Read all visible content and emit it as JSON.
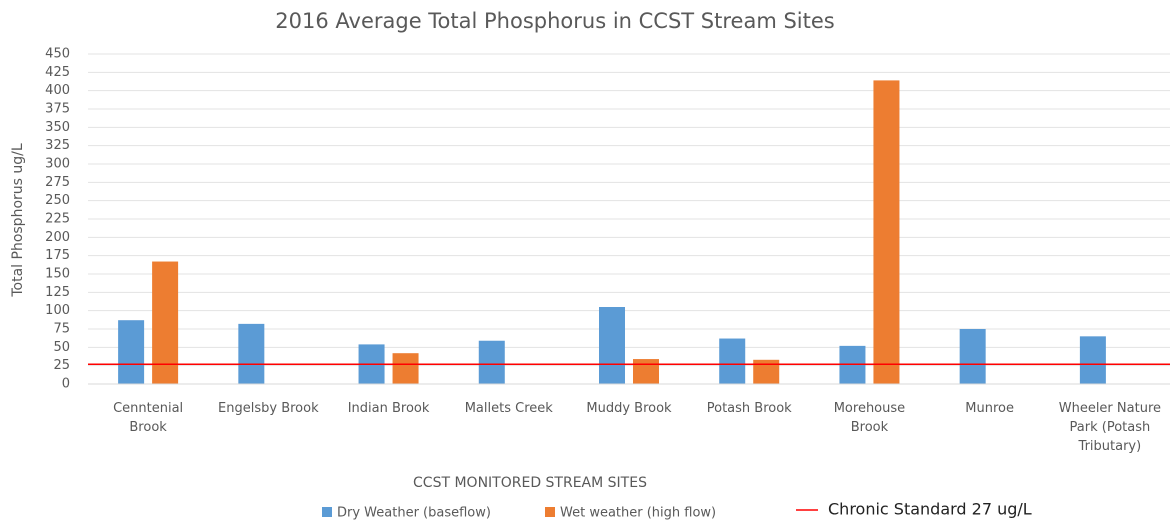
{
  "chart_data": {
    "type": "bar",
    "title": "2016 Average Total Phosphorus in CCST Stream Sites",
    "x_label": "CCST MONITORED STREAM SITES",
    "y_label": "Total Phosphorus ug/L",
    "categories": [
      "Cenntenial Brook",
      "Engelsby Brook",
      "Indian Brook",
      "Mallets Creek",
      "Muddy Brook",
      "Potash Brook",
      "Morehouse Brook",
      "Munroe",
      "Wheeler Nature Park (Potash Tributary)"
    ],
    "series": [
      {
        "name": "Dry Weather (baseflow)",
        "color": "#5b9bd5",
        "values": [
          87,
          82,
          54,
          59,
          105,
          62,
          52,
          75,
          65
        ]
      },
      {
        "name": "Wet weather (high flow)",
        "color": "#ed7d31",
        "values": [
          167,
          null,
          42,
          null,
          34,
          33,
          414,
          null,
          null
        ]
      }
    ],
    "reference_line": {
      "name": "Chronic Standard 27 ug/L",
      "value": 27,
      "color": "#ff0000"
    },
    "ylim": [
      0,
      450
    ],
    "yticks": [
      0,
      25,
      50,
      75,
      100,
      125,
      150,
      175,
      200,
      225,
      250,
      275,
      300,
      325,
      350,
      375,
      400,
      425,
      450
    ],
    "grid": true
  }
}
